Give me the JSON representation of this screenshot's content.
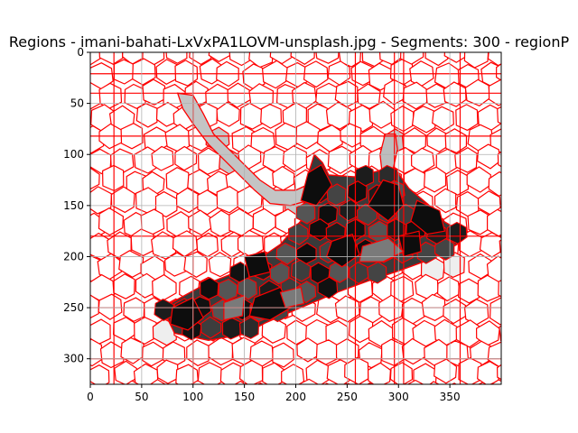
{
  "figure": {
    "title": "Regions - imani-bahati-LxVxPA1LOVM-unsplash.jpg - Segments: 300 - regionP"
  },
  "chart_data": {
    "type": "heatmap",
    "title": "Regions - imani-bahati-LxVxPA1LOVM-unsplash.jpg - Segments: 300 - regionP",
    "xlabel": "",
    "ylabel": "",
    "xlim": [
      0,
      400
    ],
    "ylim": [
      325,
      0
    ],
    "x_ticks": [
      0,
      50,
      100,
      150,
      200,
      250,
      300,
      350
    ],
    "y_ticks": [
      0,
      50,
      100,
      150,
      200,
      250,
      300
    ],
    "grid": true,
    "boundary_color": "#ff0000",
    "grid_color": "#b0b0b0",
    "segments_count": 300,
    "shoe_outline": [
      [
        70,
        250
      ],
      [
        110,
        228
      ],
      [
        150,
        212
      ],
      [
        185,
        188
      ],
      [
        205,
        165
      ],
      [
        212,
        120
      ],
      [
        218,
        100
      ],
      [
        226,
        108
      ],
      [
        232,
        120
      ],
      [
        258,
        122
      ],
      [
        285,
        115
      ],
      [
        298,
        116
      ],
      [
        310,
        133
      ],
      [
        330,
        150
      ],
      [
        345,
        166
      ],
      [
        357,
        173
      ],
      [
        357,
        188
      ],
      [
        330,
        203
      ],
      [
        300,
        214
      ],
      [
        270,
        224
      ],
      [
        240,
        235
      ],
      [
        200,
        252
      ],
      [
        170,
        265
      ],
      [
        150,
        276
      ],
      [
        115,
        282
      ],
      [
        82,
        275
      ]
    ],
    "shoe_dark_regions": [
      [
        [
          212,
          118
        ],
        [
          225,
          110
        ],
        [
          235,
          130
        ],
        [
          220,
          150
        ],
        [
          205,
          145
        ]
      ],
      [
        [
          270,
          150
        ],
        [
          285,
          125
        ],
        [
          300,
          130
        ],
        [
          305,
          150
        ],
        [
          290,
          165
        ]
      ],
      [
        [
          318,
          145
        ],
        [
          340,
          155
        ],
        [
          345,
          175
        ],
        [
          328,
          178
        ],
        [
          312,
          165
        ]
      ],
      [
        [
          160,
          240
        ],
        [
          185,
          230
        ],
        [
          195,
          250
        ],
        [
          175,
          262
        ],
        [
          155,
          258
        ]
      ],
      [
        [
          80,
          250
        ],
        [
          100,
          240
        ],
        [
          110,
          260
        ],
        [
          95,
          272
        ],
        [
          78,
          266
        ]
      ],
      [
        [
          235,
          185
        ],
        [
          255,
          178
        ],
        [
          262,
          198
        ],
        [
          245,
          210
        ],
        [
          230,
          200
        ]
      ],
      [
        [
          300,
          180
        ],
        [
          320,
          175
        ],
        [
          322,
          195
        ],
        [
          305,
          200
        ]
      ],
      [
        [
          150,
          200
        ],
        [
          170,
          195
        ],
        [
          175,
          215
        ],
        [
          155,
          220
        ]
      ]
    ],
    "shoe_light_regions": [
      [
        [
          265,
          190
        ],
        [
          290,
          182
        ],
        [
          305,
          195
        ],
        [
          285,
          205
        ],
        [
          262,
          205
        ]
      ],
      [
        [
          130,
          245
        ],
        [
          150,
          238
        ],
        [
          148,
          258
        ],
        [
          130,
          262
        ]
      ],
      [
        [
          185,
          235
        ],
        [
          205,
          230
        ],
        [
          208,
          246
        ],
        [
          190,
          250
        ]
      ]
    ],
    "lace_region": [
      [
        85,
        40
      ],
      [
        100,
        42
      ],
      [
        110,
        60
      ],
      [
        120,
        80
      ],
      [
        135,
        95
      ],
      [
        150,
        110
      ],
      [
        165,
        125
      ],
      [
        180,
        135
      ],
      [
        200,
        135
      ],
      [
        215,
        128
      ],
      [
        212,
        145
      ],
      [
        195,
        150
      ],
      [
        175,
        148
      ],
      [
        160,
        135
      ],
      [
        145,
        120
      ],
      [
        130,
        105
      ],
      [
        115,
        90
      ],
      [
        100,
        70
      ],
      [
        90,
        55
      ]
    ],
    "lace_tip": [
      [
        287,
        80
      ],
      [
        297,
        80
      ],
      [
        299,
        95
      ],
      [
        294,
        118
      ],
      [
        284,
        118
      ],
      [
        282,
        100
      ]
    ],
    "shadow_regions": [
      [
        [
          72,
          270
        ],
        [
          90,
          276
        ],
        [
          85,
          288
        ],
        [
          70,
          282
        ]
      ],
      [
        [
          330,
          205
        ],
        [
          350,
          196
        ],
        [
          360,
          208
        ],
        [
          345,
          220
        ],
        [
          330,
          218
        ]
      ]
    ]
  }
}
